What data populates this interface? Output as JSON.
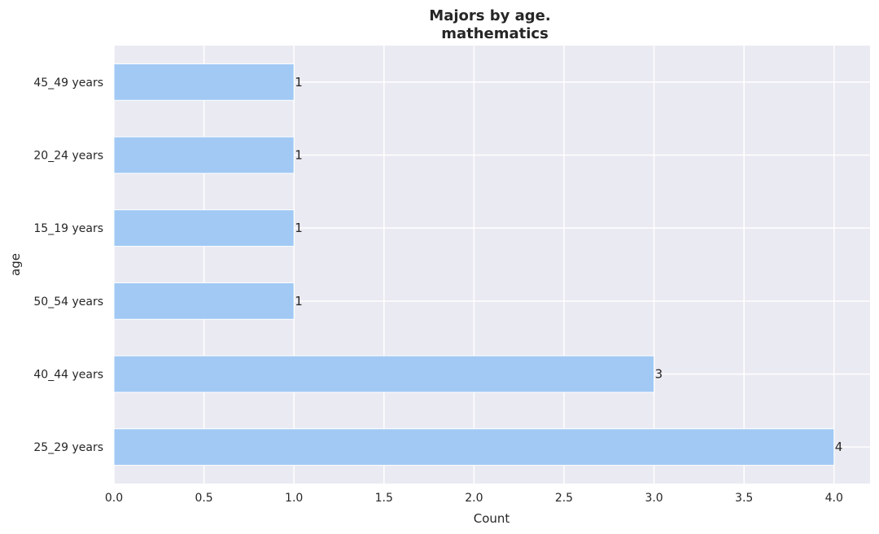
{
  "chart_data": {
    "type": "bar",
    "orientation": "horizontal",
    "title_line1": "Majors by age.",
    "title_line2": "mathematics",
    "xlabel": "Count",
    "ylabel": "age",
    "categories": [
      "25_29 years",
      "40_44 years",
      "50_54 years",
      "15_19 years",
      "20_24 years",
      "45_49 years"
    ],
    "values": [
      4,
      3,
      1,
      1,
      1,
      1
    ],
    "data_labels": [
      "4",
      "3",
      "1",
      "1",
      "1",
      "1"
    ],
    "xlim": [
      0,
      4.2
    ],
    "x_ticks": [
      0.0,
      0.5,
      1.0,
      1.5,
      2.0,
      2.5,
      3.0,
      3.5,
      4.0
    ],
    "x_tick_labels": [
      "0.0",
      "0.5",
      "1.0",
      "1.5",
      "2.0",
      "2.5",
      "3.0",
      "3.5",
      "4.0"
    ],
    "grid": true,
    "colors": {
      "bar": "#a1c9f4",
      "plot_background": "#eaeaf2",
      "grid": "#ffffff",
      "text": "#262626"
    }
  }
}
